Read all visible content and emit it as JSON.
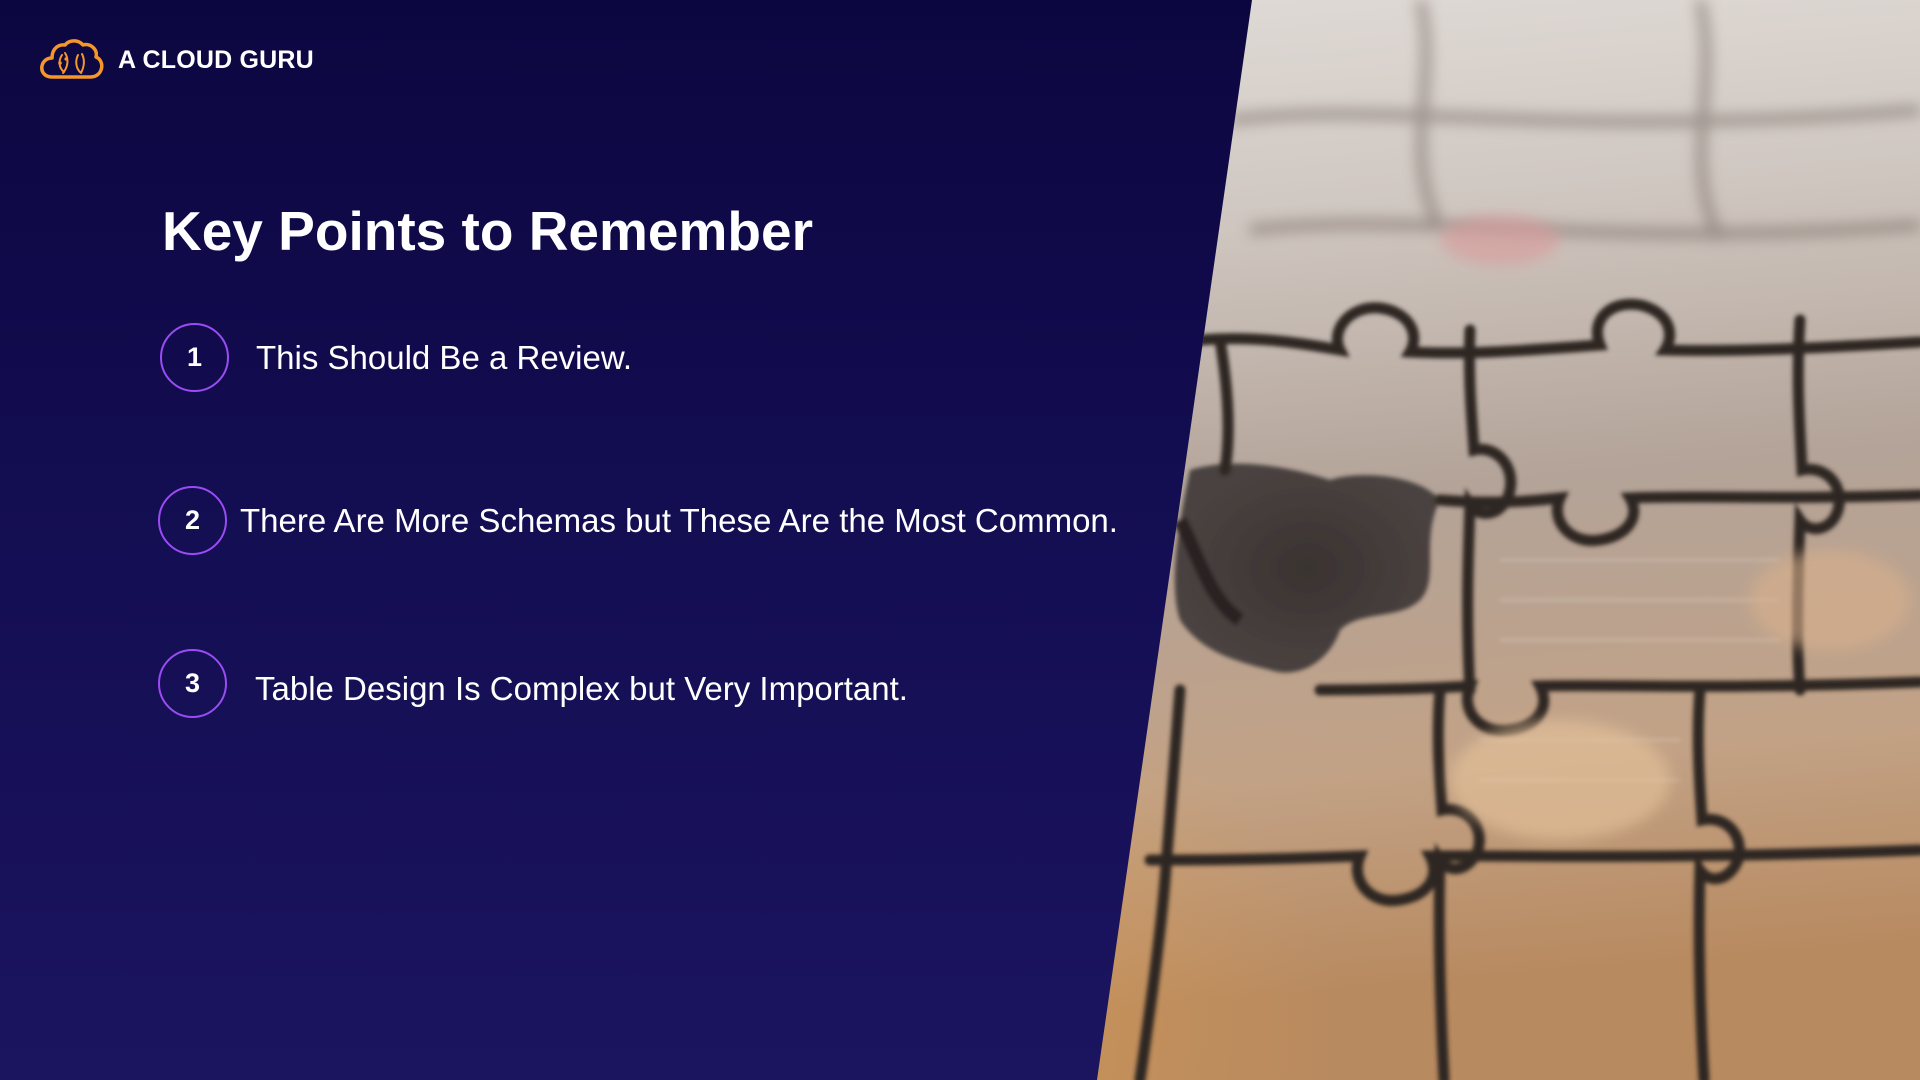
{
  "brand": {
    "name": "A CLOUD GURU",
    "logo_icon": "cloud-logo-icon",
    "accent_color": "#f5962a"
  },
  "slide": {
    "title": "Key Points to Remember",
    "background_color": "#140f52",
    "badge_color": "#9b4bf4",
    "points": [
      {
        "number": "1",
        "text": "This Should Be a Review."
      },
      {
        "number": "2",
        "text": "There Are More Schemas but These Are the Most Common."
      },
      {
        "number": "3",
        "text": "Table Design Is Complex but Very Important."
      }
    ],
    "photo": "jigsaw-puzzle-image"
  }
}
